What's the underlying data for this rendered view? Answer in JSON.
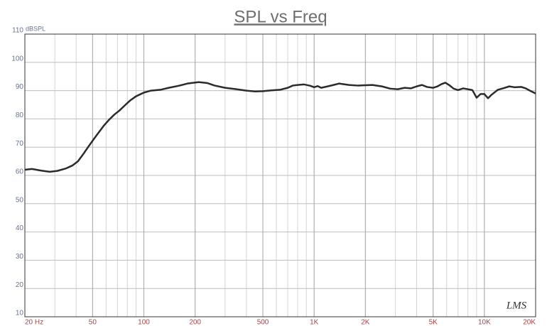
{
  "chart_data": {
    "type": "line",
    "title": "SPL vs Freq",
    "y_label": "dBSPL",
    "annotation": "LMS",
    "log_x": true,
    "grid": true,
    "xlim": [
      20,
      20000
    ],
    "ylim": [
      10,
      110
    ],
    "xticks": [
      {
        "value": 20,
        "label": "20 Hz"
      },
      50,
      100,
      200,
      500,
      {
        "value": 1000,
        "label": "1K"
      },
      {
        "value": 2000,
        "label": "2K"
      },
      {
        "value": 5000,
        "label": "5K"
      },
      {
        "value": 10000,
        "label": "10K"
      },
      {
        "value": 20000,
        "label": "20K"
      }
    ],
    "yticks": [
      10,
      20,
      30,
      40,
      50,
      60,
      70,
      80,
      90,
      100,
      110
    ],
    "x": [
      20,
      22,
      25,
      28,
      31,
      35,
      38,
      41,
      44,
      47,
      51,
      54,
      58,
      62,
      67,
      72,
      78,
      83,
      90,
      100,
      110,
      125,
      140,
      160,
      180,
      210,
      235,
      260,
      300,
      350,
      400,
      450,
      500,
      560,
      630,
      700,
      750,
      800,
      870,
      950,
      1000,
      1050,
      1100,
      1200,
      1300,
      1400,
      1600,
      1800,
      2000,
      2200,
      2500,
      2800,
      3100,
      3400,
      3700,
      4000,
      4300,
      4600,
      5000,
      5300,
      5600,
      5900,
      6200,
      6600,
      7000,
      7500,
      8000,
      8500,
      9000,
      9500,
      10000,
      10500,
      11000,
      12000,
      13000,
      14000,
      15000,
      16500,
      17500,
      18500,
      20000
    ],
    "series": [
      {
        "color": "#2b2b2b",
        "values": [
          62,
          62.3,
          61.7,
          61.3,
          61.6,
          62.5,
          63.5,
          65,
          67.5,
          70,
          73,
          75,
          77.5,
          79.5,
          81.5,
          83,
          85,
          86.5,
          88,
          89.3,
          90,
          90.3,
          91,
          91.7,
          92.5,
          93,
          92.7,
          91.8,
          91,
          90.5,
          90,
          89.7,
          89.8,
          90.1,
          90.3,
          91,
          91.8,
          92,
          92.2,
          91.7,
          91.2,
          91.6,
          91,
          91.5,
          92,
          92.5,
          92,
          91.8,
          91.9,
          92,
          91.5,
          90.7,
          90.5,
          91,
          90.8,
          91.5,
          92,
          91.3,
          91,
          91.5,
          92.3,
          92.8,
          92,
          90.7,
          90.2,
          90.8,
          90.5,
          90.2,
          87.5,
          88.8,
          88.8,
          87.3,
          88.5,
          90.3,
          90.9,
          91.5,
          91.2,
          91.3,
          90.8,
          90,
          89
        ]
      }
    ]
  }
}
